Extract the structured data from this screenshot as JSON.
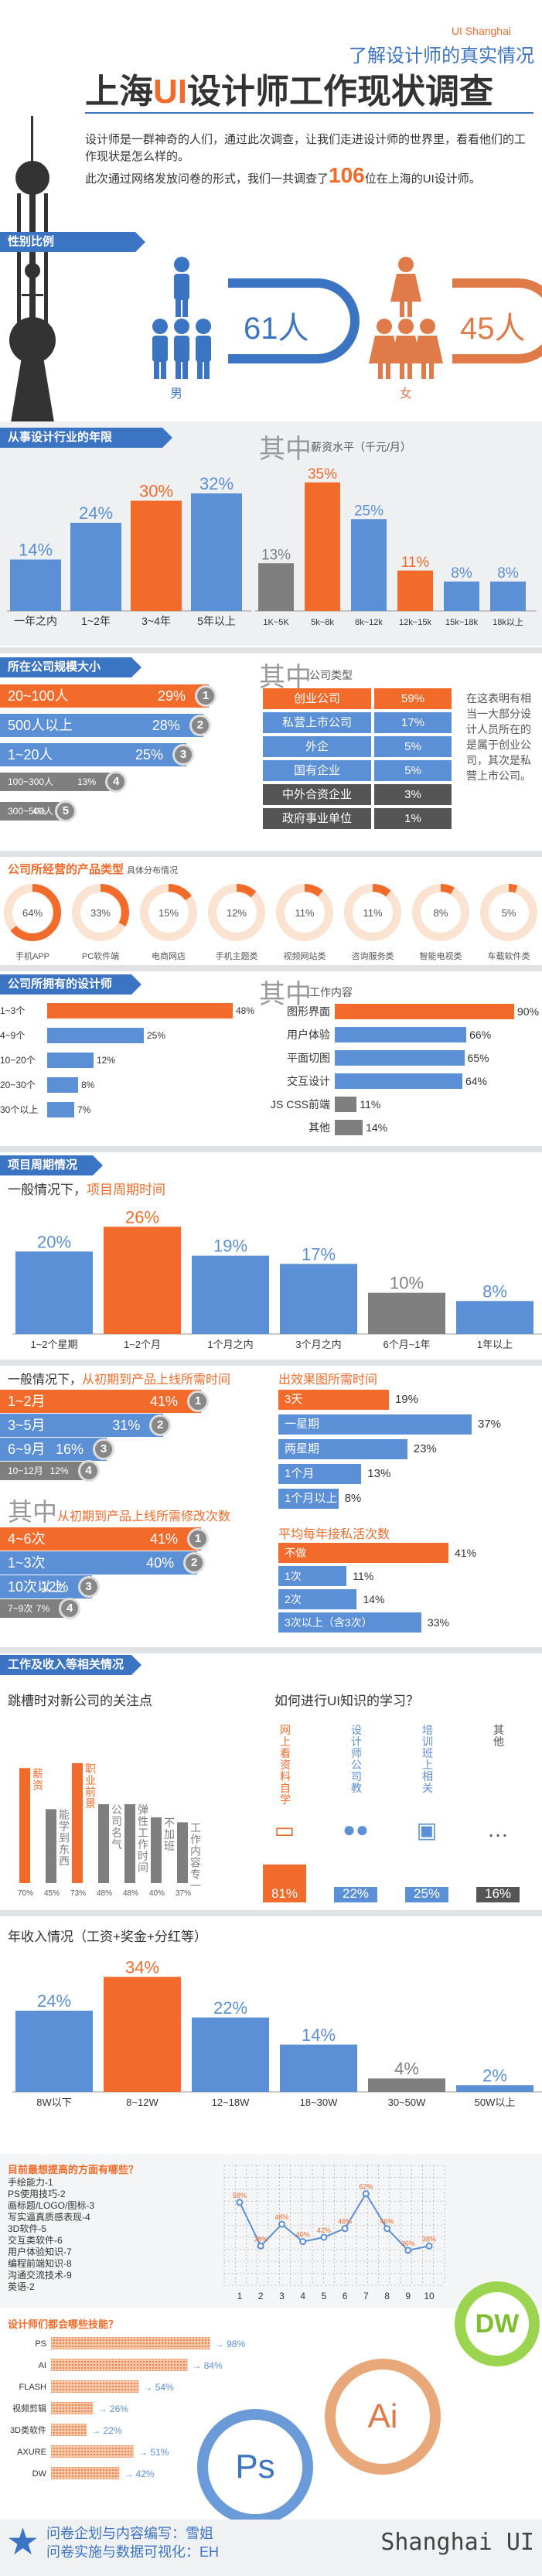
{
  "colors": {
    "blue": "#3c74c4",
    "orange": "#f26b2a",
    "gray": "#7f7f7f",
    "lightblue": "#5b8fd6",
    "darkgray": "#555555"
  },
  "header": {
    "tag": "UI Shanghai",
    "subtitle": "了解设计师的真实情况",
    "title_pre": "上海",
    "title_ui": "UI",
    "title_post": "设计师工作现状调查",
    "intro1": "设计师是一群神奇的人们，通过此次调查，让我们走进设计师的世界里，看看他们的工作现状是怎么样的。",
    "intro2_pre": "此次通过网络发放问卷的形式，我们一共调查了",
    "intro2_num": "106",
    "intro2_post": "位在上海的UI设计师。"
  },
  "gender": {
    "title": "性别比例",
    "male_count": "61人",
    "female_count": "45人",
    "male": "男",
    "female": "女",
    "male_n": 61,
    "female_n": 45
  },
  "years": {
    "title": "从事设计行业的年限",
    "zhongqi": "其中",
    "salary_label": "薪资水平（千元/月）",
    "chart_data": {
      "type": "bar",
      "categories": [
        "一年之内",
        "1~2年",
        "3~4年",
        "5年以上"
      ],
      "values": [
        14,
        24,
        30,
        32
      ],
      "labels": [
        "14%",
        "24%",
        "30%",
        "32%"
      ]
    },
    "salary_chart": {
      "type": "bar",
      "categories": [
        "1K~5K",
        "5k~8k",
        "8k~12k",
        "12k~15k",
        "15k~18k",
        "18k以上"
      ],
      "values": [
        13,
        35,
        25,
        11,
        8,
        8
      ],
      "labels": [
        "13%",
        "35%",
        "25%",
        "11%",
        "8%",
        "8%"
      ]
    }
  },
  "company_size": {
    "title": "所在公司规模大小",
    "rows": [
      {
        "label": "20~100人",
        "value": "29%",
        "n": 29,
        "rank": "1"
      },
      {
        "label": "500人以上",
        "value": "28%",
        "n": 28,
        "rank": "2"
      },
      {
        "label": "1~20人",
        "value": "25%",
        "n": 25,
        "rank": "3"
      },
      {
        "label": "100~300人",
        "value": "13%",
        "n": 13,
        "rank": "4"
      },
      {
        "label": "300~500人",
        "value": "4%",
        "n": 4,
        "rank": "5"
      }
    ],
    "zhongqi": "其中",
    "type_label": "公司类型",
    "types": [
      {
        "label": "创业公司",
        "value": "59%"
      },
      {
        "label": "私营上市公司",
        "value": "17%"
      },
      {
        "label": "外企",
        "value": "5%"
      },
      {
        "label": "国有企业",
        "value": "5%"
      },
      {
        "label": "中外合资企业",
        "value": "3%"
      },
      {
        "label": "政府事业单位",
        "value": "1%"
      }
    ],
    "note": "在这表明有相当一大部分设计人员所在的是属于创业公司，其次是私营上市公司。"
  },
  "product": {
    "title": "公司所经营的产品类型",
    "sub": "具体分布情况",
    "items": [
      {
        "label": "手机APP",
        "value": "64%",
        "n": 64
      },
      {
        "label": "PC软件端",
        "value": "33%",
        "n": 33
      },
      {
        "label": "电商网店",
        "value": "15%",
        "n": 15
      },
      {
        "label": "手机主题类",
        "value": "12%",
        "n": 12
      },
      {
        "label": "视频网站类",
        "value": "11%",
        "n": 11
      },
      {
        "label": "咨询服务类",
        "value": "11%",
        "n": 11
      },
      {
        "label": "智能电视类",
        "value": "8%",
        "n": 8
      },
      {
        "label": "车载软件类",
        "value": "5%",
        "n": 5
      }
    ]
  },
  "designers": {
    "title": "公司所拥有的设计师",
    "rows": [
      {
        "label": "1~3个",
        "value": "48%",
        "n": 48
      },
      {
        "label": "4~9个",
        "value": "25%",
        "n": 25
      },
      {
        "label": "10~20个",
        "value": "12%",
        "n": 12
      },
      {
        "label": "20~30个",
        "value": "8%",
        "n": 8
      },
      {
        "label": "30个以上",
        "value": "7%",
        "n": 7
      }
    ],
    "zhongqi": "其中",
    "work_label": "工作内容",
    "work": [
      {
        "label": "图形界面",
        "value": "90%",
        "n": 90
      },
      {
        "label": "用户体验",
        "value": "66%",
        "n": 66
      },
      {
        "label": "平面切图",
        "value": "65%",
        "n": 65
      },
      {
        "label": "交互设计",
        "value": "64%",
        "n": 64
      },
      {
        "label": "JS CSS前端",
        "value": "11%",
        "n": 11
      },
      {
        "label": "其他",
        "value": "14%",
        "n": 14
      }
    ]
  },
  "cycle": {
    "title": "项目周期情况",
    "heading_pre": "一般情况下，",
    "heading_hl": "项目周期时间",
    "chart_data": {
      "type": "bar",
      "categories": [
        "1~2个星期",
        "1~2个月",
        "1个月之内",
        "3个月之内",
        "6个月~1年",
        "1年以上"
      ],
      "values": [
        20,
        26,
        19,
        17,
        10,
        8
      ],
      "labels": [
        "20%",
        "26%",
        "19%",
        "17%",
        "10%",
        "8%"
      ]
    },
    "launch_pre": "一般情况下，",
    "launch_hl": "从初期到产品上线所需时间",
    "launch": [
      {
        "label": "1~2月",
        "value": "41%",
        "n": 41,
        "rank": "1"
      },
      {
        "label": "3~5月",
        "value": "31%",
        "n": 31,
        "rank": "2"
      },
      {
        "label": "6~9月",
        "value": "16%",
        "n": 16,
        "rank": "3"
      },
      {
        "label": "10~12月",
        "value": "12%",
        "n": 12,
        "rank": "4"
      }
    ],
    "revise_zq": "其中",
    "revise_hl": "从初期到产品上线所需修改次数",
    "revise": [
      {
        "label": "4~6次",
        "value": "41%",
        "n": 41,
        "rank": "1"
      },
      {
        "label": "1~3次",
        "value": "40%",
        "n": 40,
        "rank": "2"
      },
      {
        "label": "10次以上",
        "value": "12%",
        "n": 12,
        "rank": "3"
      },
      {
        "label": "7~9次",
        "value": "7%",
        "n": 7,
        "rank": "4"
      }
    ],
    "effect_hl": "出效果图所需时间",
    "effect": [
      {
        "label": "3天",
        "value": "19%",
        "n": 19
      },
      {
        "label": "一星期",
        "value": "37%",
        "n": 37
      },
      {
        "label": "两星期",
        "value": "23%",
        "n": 23
      },
      {
        "label": "1个月",
        "value": "13%",
        "n": 13
      },
      {
        "label": "1个月以上",
        "value": "8%",
        "n": 8
      }
    ],
    "private_hl": "平均每年接私活次数",
    "private": [
      {
        "label": "不做",
        "value": "41%",
        "n": 41
      },
      {
        "label": "1次",
        "value": "11%",
        "n": 11
      },
      {
        "label": "2次",
        "value": "14%",
        "n": 14
      },
      {
        "label": "3次以上（含3次）",
        "value": "33%",
        "n": 33
      }
    ]
  },
  "income": {
    "title": "工作及收入等相关情况",
    "jump_title": "跳槽时对新公司的关注点",
    "jump": [
      {
        "label": "薪资",
        "value": "70%",
        "n": 70
      },
      {
        "label": "能学到东西",
        "value": "45%",
        "n": 45
      },
      {
        "label": "职业前景",
        "value": "73%",
        "n": 73
      },
      {
        "label": "公司名气",
        "value": "48%",
        "n": 48
      },
      {
        "label": "弹性工作时间",
        "value": "48%",
        "n": 48
      },
      {
        "label": "不加班",
        "value": "40%",
        "n": 40
      },
      {
        "label": "工作内容专一",
        "value": "37%",
        "n": 37
      }
    ],
    "learn_title": "如何进行UI知识的学习？",
    "learn": [
      {
        "label": "网上看资料自学",
        "value": "81%",
        "n": 81
      },
      {
        "label": "设计师公司教",
        "value": "22%",
        "n": 22
      },
      {
        "label": "培训班上相关",
        "value": "25%",
        "n": 25
      },
      {
        "label": "其他",
        "value": "16%",
        "n": 16
      }
    ],
    "annual_title": "年收入情况（工资+奖金+分红等）",
    "chart_data": {
      "type": "bar",
      "categories": [
        "8W以下",
        "8~12W",
        "12~18W",
        "18~30W",
        "30~50W",
        "50W以上"
      ],
      "values": [
        24,
        34,
        22,
        14,
        4,
        2
      ],
      "labels": [
        "24%",
        "34%",
        "22%",
        "14%",
        "4%",
        "2%"
      ]
    }
  },
  "skills": {
    "title": "目前最想提高的方面有哪些？",
    "items": [
      "手绘能力-1",
      "PS使用技巧-2",
      "画标题/LOGO/图标-3",
      "写实逼真质感表现-4",
      "3D软件-5",
      "交互类软件-6",
      "用户体验知识-7",
      "编程前端知识-8",
      "沟通交流技术-9",
      "英语-2"
    ],
    "chart_data": {
      "type": "line",
      "x": [
        1,
        2,
        3,
        4,
        5,
        6,
        7,
        8,
        9,
        10
      ],
      "values": [
        58,
        38,
        48,
        40,
        42,
        46,
        62,
        46,
        36,
        38
      ],
      "labels": [
        "58%",
        "38%",
        "48%",
        "40%",
        "42%",
        "46%",
        "62%",
        "46%",
        "36%",
        "38%"
      ],
      "ylim": [
        20,
        75
      ]
    }
  },
  "software": {
    "title": "设计师们都会哪些技能？",
    "items": [
      {
        "label": "PS",
        "value": "98%",
        "n": 98
      },
      {
        "label": "AI",
        "value": "84%",
        "n": 84
      },
      {
        "label": "FLASH",
        "value": "54%",
        "n": 54
      },
      {
        "label": "视频剪辑",
        "value": "26%",
        "n": 26
      },
      {
        "label": "3D类软件",
        "value": "22%",
        "n": 22
      },
      {
        "label": "AXURE",
        "value": "51%",
        "n": 51
      },
      {
        "label": "DW",
        "value": "42%",
        "n": 42
      }
    ],
    "badge_ps": "Ps",
    "badge_ai": "Ai",
    "badge_dw": "DW"
  },
  "footer": {
    "line1": "问卷企划与内容编写：雪姐",
    "line2": "问卷实施与数据可视化：EH",
    "brand": "Shanghai UI"
  }
}
